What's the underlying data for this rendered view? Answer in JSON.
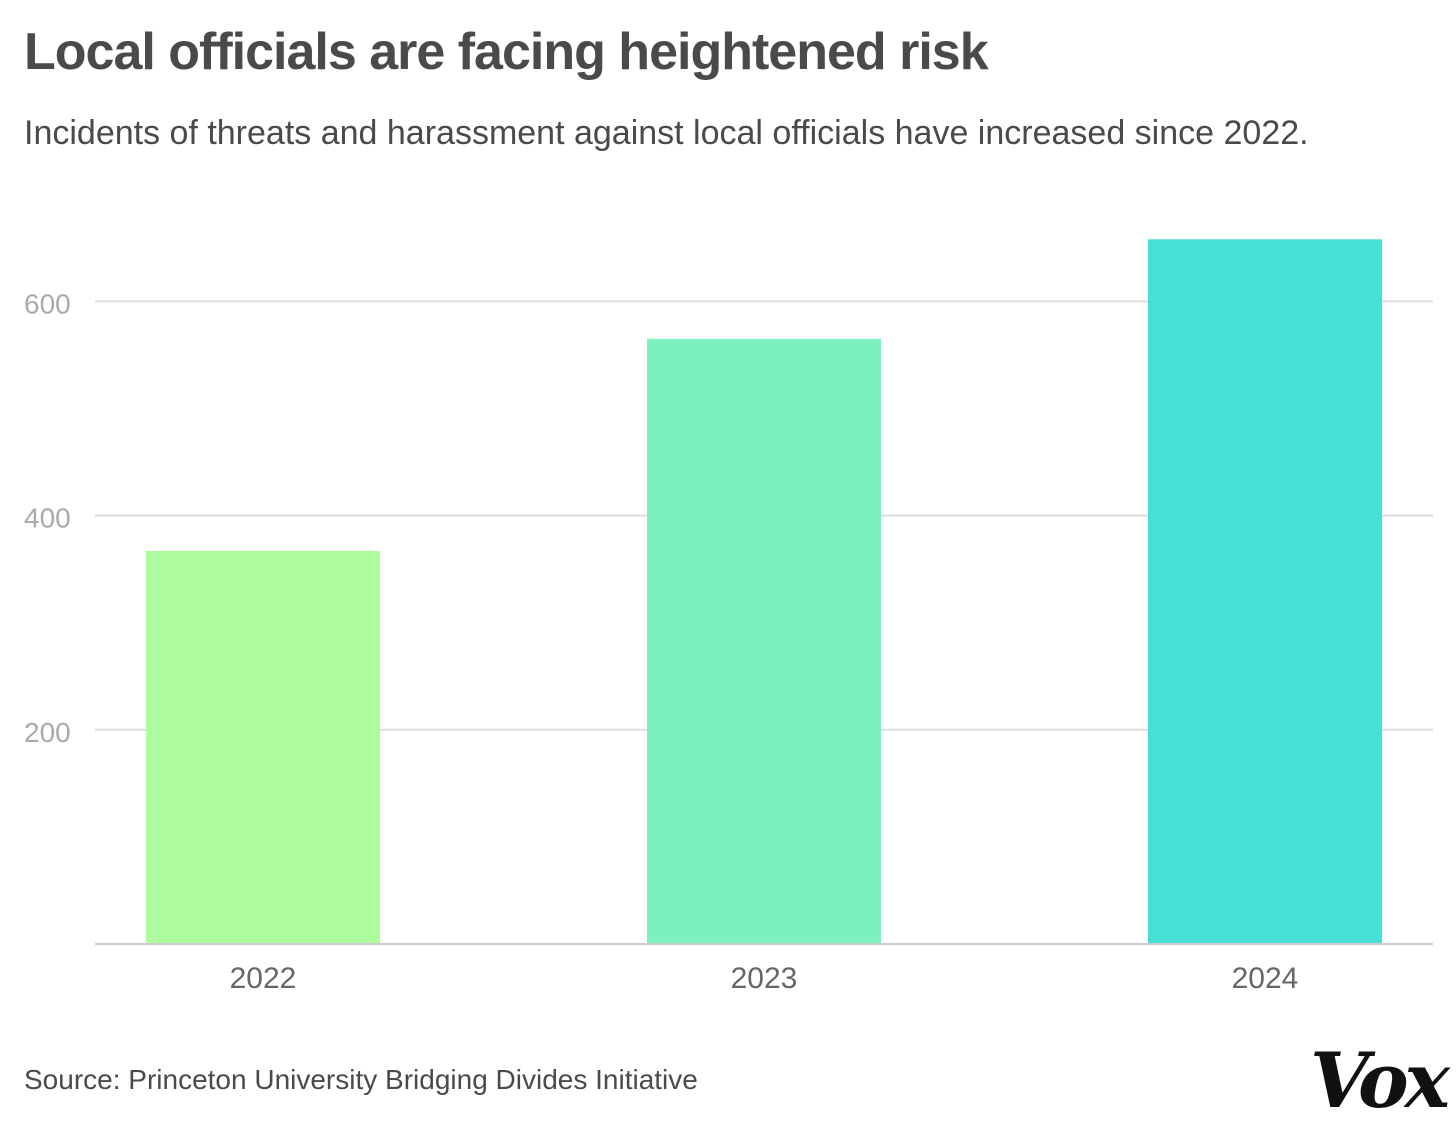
{
  "header": {
    "title": "Local officials are facing heightened risk",
    "subtitle": "Incidents of threats and harassment against local officials have increased since 2022."
  },
  "footer": {
    "source": "Source: Princeton University Bridging Divides Initiative",
    "logo": "Vox"
  },
  "colors": {
    "bar_2022": "#adfc9d",
    "bar_2023": "#7cf0bd",
    "bar_2024": "#46e0d8",
    "gridline": "#dddddd",
    "tick_label": "#aaaaaa",
    "category_label": "#666666"
  },
  "chart_data": {
    "type": "bar",
    "categories": [
      "2022",
      "2023",
      "2024"
    ],
    "values": [
      367,
      565,
      658
    ],
    "title": "Local officials are facing heightened risk",
    "subtitle": "Incidents of threats and harassment against local officials have increased since 2022.",
    "xlabel": "",
    "ylabel": "",
    "ylim": [
      0,
      680
    ],
    "yticks": [
      200,
      400,
      600
    ],
    "grid": true,
    "legend": "none"
  }
}
